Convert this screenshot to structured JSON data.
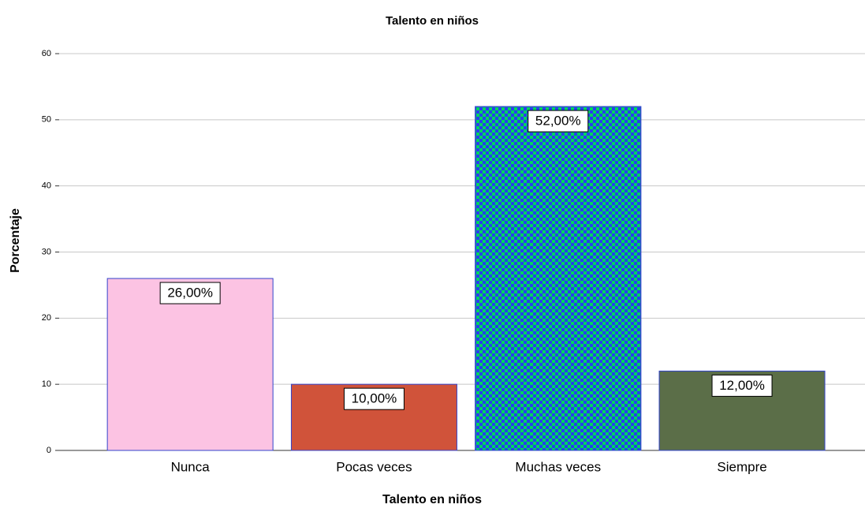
{
  "chart_data": {
    "type": "bar",
    "title": "Talento en niños",
    "x_label": "Talento en niños",
    "y_label": "Porcentaje",
    "categories": [
      "Nunca",
      "Pocas veces",
      "Muchas veces",
      "Siempre"
    ],
    "values": [
      26,
      10,
      52,
      12
    ],
    "value_labels": [
      "26,00%",
      "10,00%",
      "52,00%",
      "12,00%"
    ],
    "colors": [
      "#fcc3e3",
      "#d0533a",
      "#00d65c",
      "#5b6e48"
    ],
    "ylim": [
      0,
      60
    ],
    "yticks": [
      0,
      10,
      20,
      30,
      40,
      50,
      60
    ],
    "grid": true
  }
}
